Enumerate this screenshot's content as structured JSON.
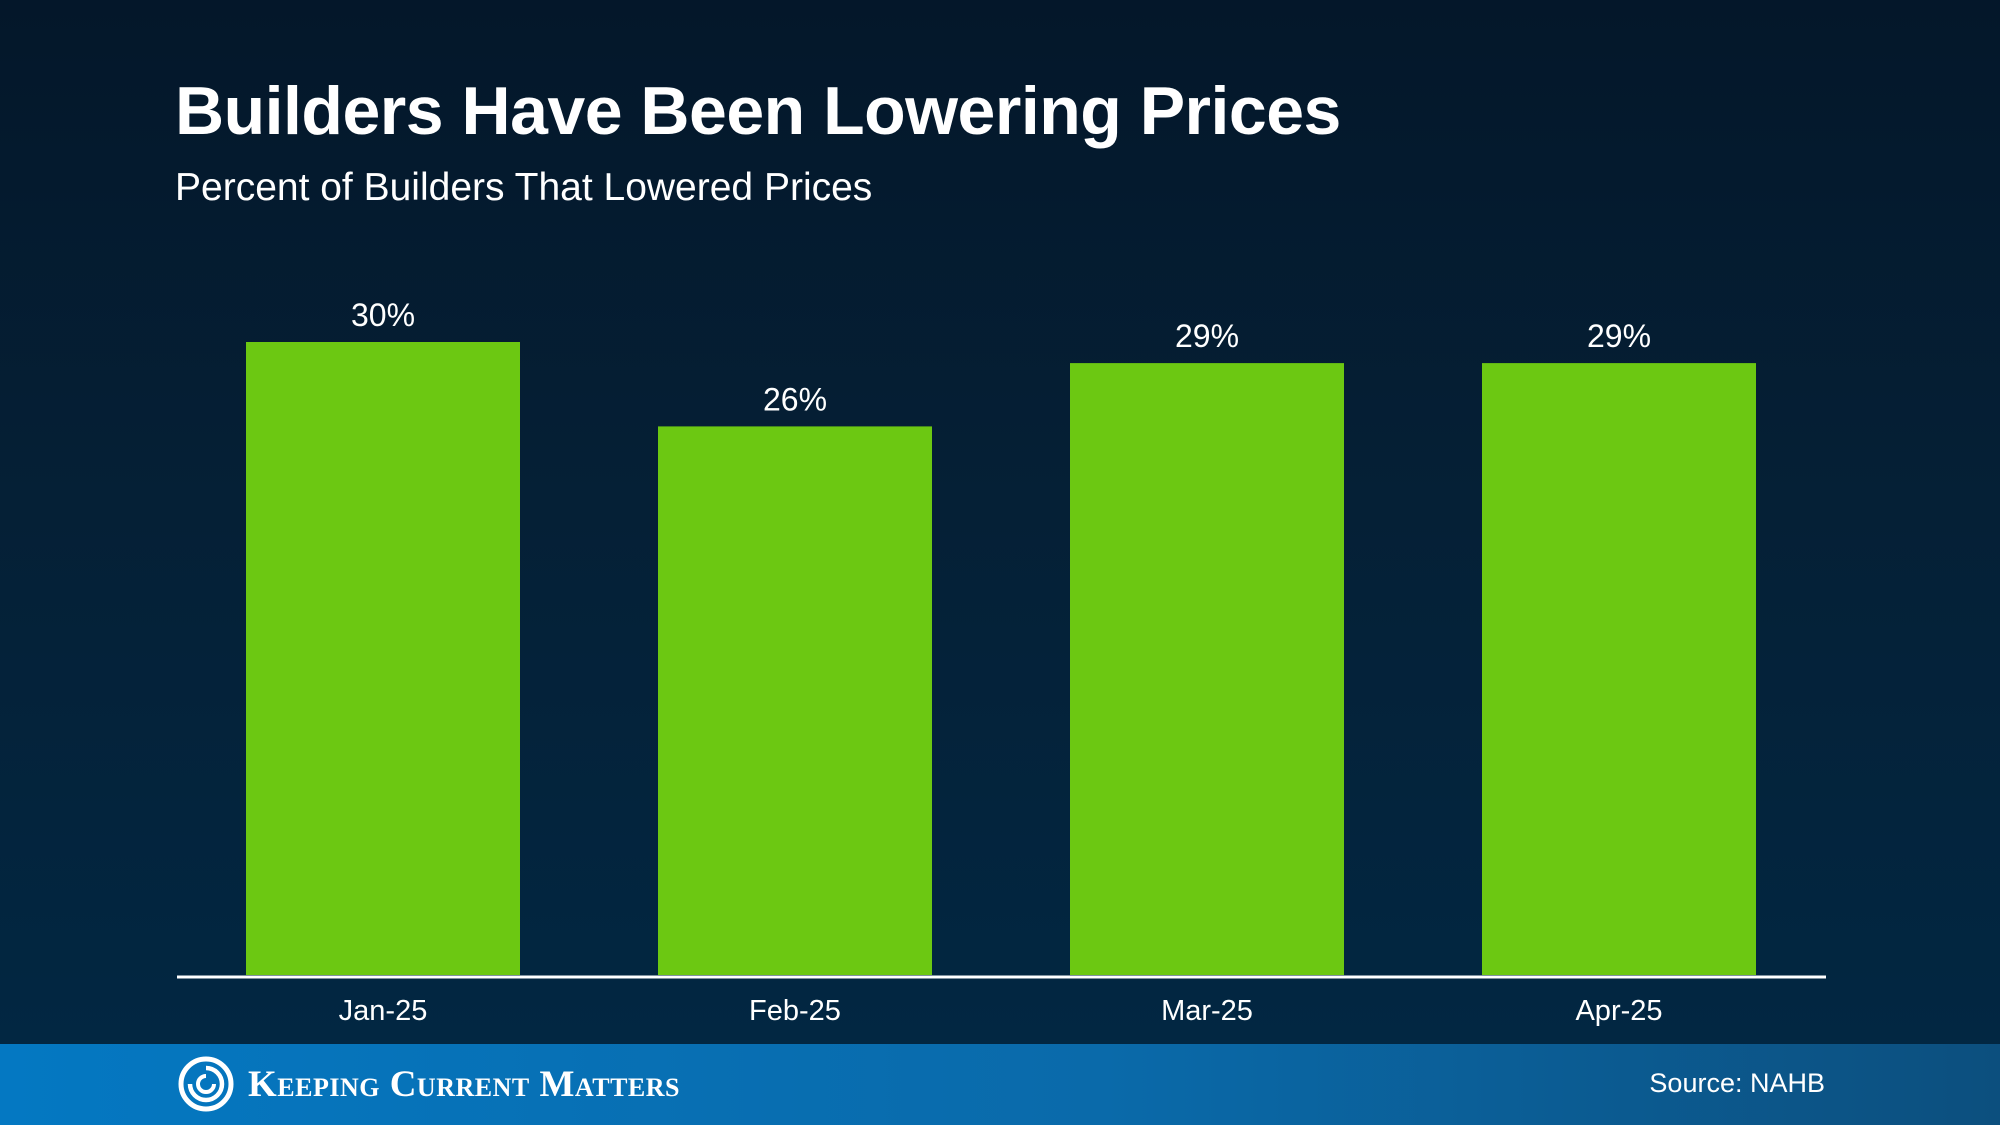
{
  "header": {
    "title": "Builders Have Been Lowering Prices",
    "subtitle": "Percent of Builders That Lowered Prices"
  },
  "footer": {
    "brand": "Keeping Current Matters",
    "source": "Source: NAHB"
  },
  "colors": {
    "bar": "#6cc812",
    "axis": "#ffffff",
    "text": "#ffffff"
  },
  "icons": {
    "logo": "swirl-logo-icon"
  },
  "chart_data": {
    "type": "bar",
    "title": "Builders Have Been Lowering Prices",
    "subtitle": "Percent of Builders That Lowered Prices",
    "categories": [
      "Jan-25",
      "Feb-25",
      "Mar-25",
      "Apr-25"
    ],
    "values": [
      30,
      26,
      29,
      29
    ],
    "data_labels": [
      "30%",
      "26%",
      "29%",
      "29%"
    ],
    "xlabel": "",
    "ylabel": "",
    "ylim": [
      0,
      35
    ],
    "grid": false,
    "legend": "none",
    "source": "Source: NAHB"
  }
}
